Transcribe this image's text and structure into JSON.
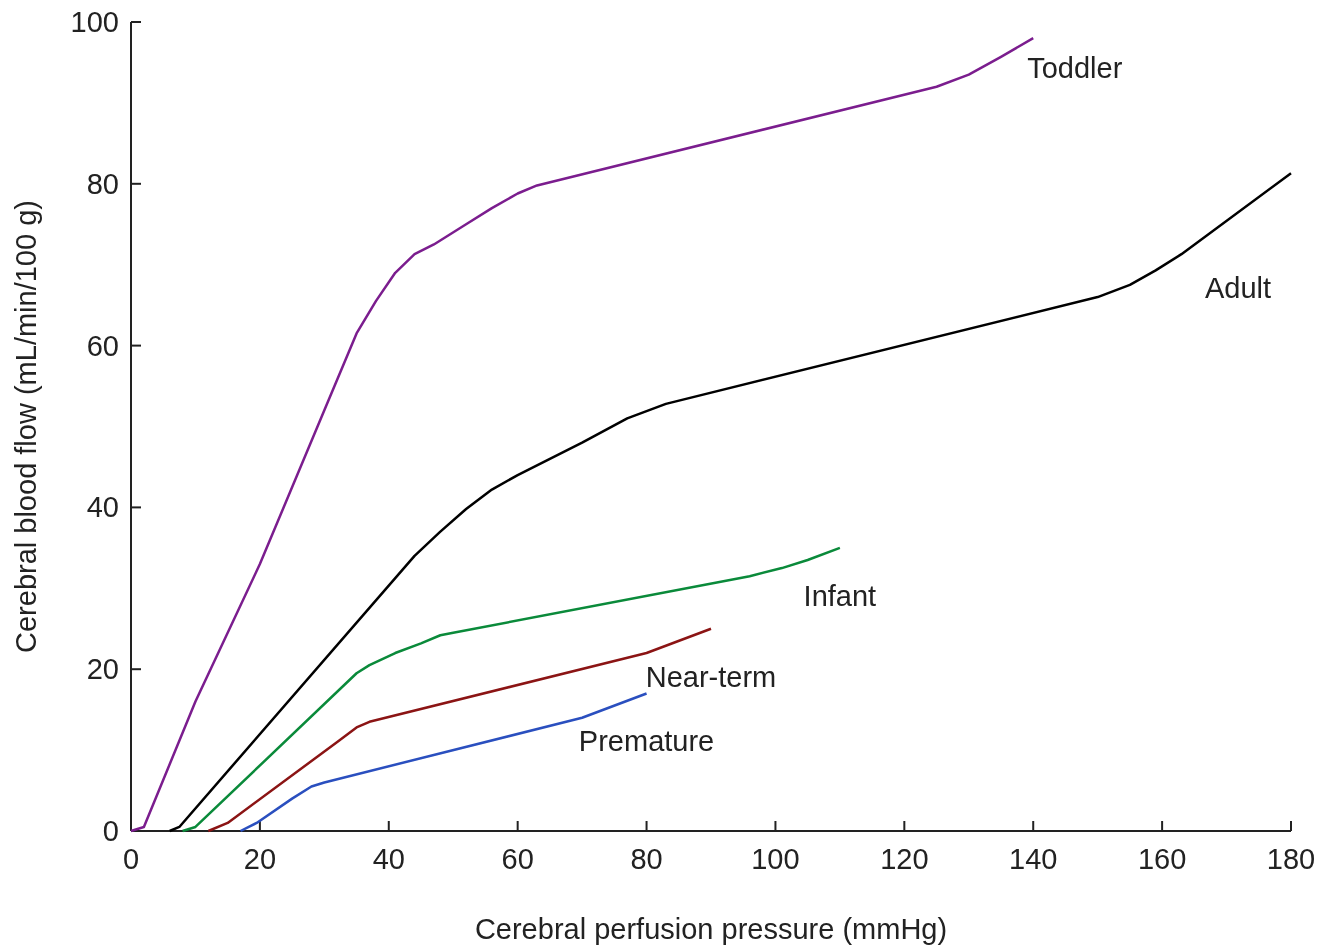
{
  "chart_data": {
    "type": "line",
    "xlabel": "Cerebral perfusion pressure (mmHg)",
    "ylabel": "Cerebral blood flow (mL/min/100 g)",
    "xlim": [
      0,
      180
    ],
    "ylim": [
      0,
      100
    ],
    "xticks": [
      0,
      20,
      40,
      60,
      80,
      100,
      120,
      140,
      160,
      180
    ],
    "yticks": [
      0,
      20,
      40,
      60,
      80,
      100
    ],
    "marker": "none",
    "line_style": "solid",
    "series": [
      {
        "name": "Toddler",
        "color": "#7b1d8e",
        "x": [
          0,
          2,
          10,
          20,
          30,
          35,
          38,
          41,
          44,
          47,
          52,
          56,
          60,
          63,
          125,
          130,
          135,
          140
        ],
        "values": [
          0,
          0.5,
          16,
          33,
          52,
          61.5,
          65.5,
          69,
          71.3,
          72.5,
          75,
          77,
          78.8,
          79.8,
          92,
          93.5,
          95.7,
          98
        ]
      },
      {
        "name": "Adult",
        "color": "#000000",
        "x": [
          6,
          7.5,
          44,
          48,
          52,
          56,
          60,
          70,
          77,
          83,
          150,
          155,
          159,
          163,
          180
        ],
        "values": [
          0,
          0.5,
          34,
          37,
          39.8,
          42.2,
          44,
          48,
          51,
          52.8,
          66,
          67.5,
          69.3,
          71.3,
          81.3
        ]
      },
      {
        "name": "Infant",
        "color": "#0a8a3a",
        "x": [
          8,
          10,
          35,
          37,
          41,
          45,
          48,
          50,
          96,
          101,
          105,
          110
        ],
        "values": [
          0,
          0.5,
          19.5,
          20.5,
          22,
          23.2,
          24.2,
          24.5,
          31.5,
          32.5,
          33.5,
          35
        ]
      },
      {
        "name": "Near-term",
        "color": "#8b1414",
        "x": [
          12,
          15,
          32,
          35,
          37,
          80,
          90
        ],
        "values": [
          0,
          1,
          11,
          12.8,
          13.5,
          22,
          25
        ]
      },
      {
        "name": "Premature",
        "color": "#2a4fbf",
        "x": [
          17,
          19.5,
          25,
          28,
          30,
          70,
          80
        ],
        "values": [
          0,
          1,
          4,
          5.5,
          6,
          14,
          17
        ]
      }
    ]
  }
}
